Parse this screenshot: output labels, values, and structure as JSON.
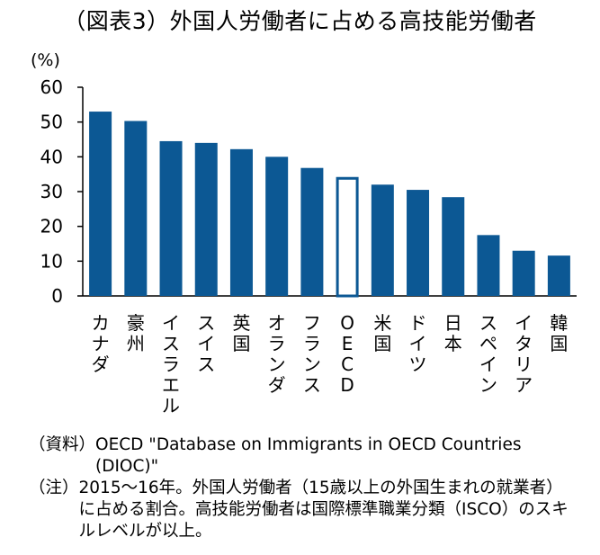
{
  "title": "（図表3）外国人労働者に占める高技能労働者",
  "unit": "(%)",
  "colors": {
    "bar": "#0c5894",
    "highlight_outline": "#0c5894",
    "axis": "#000000"
  },
  "chart_data": {
    "type": "bar",
    "categories": [
      "カナダ",
      "豪州",
      "イスラエル",
      "スイス",
      "英国",
      "オランダ",
      "フランス",
      "OECD",
      "米国",
      "ドイツ",
      "日本",
      "スペイン",
      "イタリア",
      "韓国"
    ],
    "values": [
      53.0,
      50.3,
      44.5,
      44.0,
      42.2,
      40.0,
      36.8,
      34.2,
      32.0,
      30.5,
      28.4,
      17.5,
      13.0,
      11.6
    ],
    "highlight": "OECD",
    "yticks": [
      "0",
      "10",
      "20",
      "30",
      "40",
      "50",
      "60"
    ],
    "ylim": [
      0,
      60
    ],
    "ylabel": "(%)",
    "xlabel": "",
    "grid": false,
    "legend": "none"
  },
  "notes": {
    "source_label": "（資料）",
    "source_text": "OECD \"Database on Immigrants  in OECD Countries (DIOC)\"",
    "note_label": "（注）",
    "note_text": "2015～16年。外国人労働者（15歳以上の外国生まれの就業者）に占める割合。高技能労働者は国際標準職業分類（ISCO）のスキルレベルが以上。"
  }
}
